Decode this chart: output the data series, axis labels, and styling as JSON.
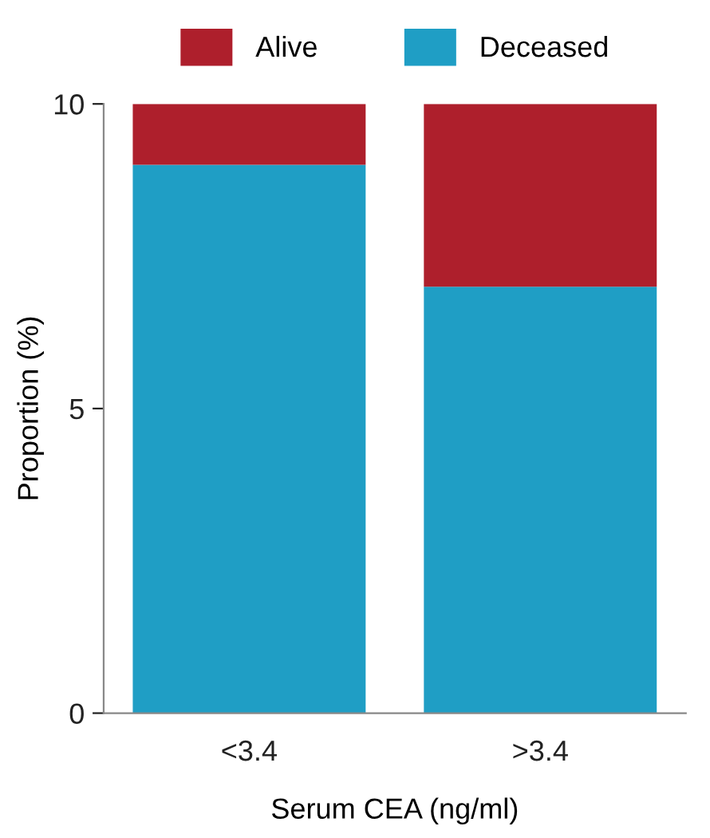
{
  "chart_data": {
    "type": "bar",
    "stacked": true,
    "xlabel": "Serum CEA (ng/ml)",
    "ylabel": "Proportion (%)",
    "categories": [
      "<3.4",
      ">3.4"
    ],
    "series": [
      {
        "name": "Deceased",
        "color": "#1f9ec5",
        "values": [
          9,
          7
        ]
      },
      {
        "name": "Alive",
        "color": "#ae1f2c",
        "values": [
          1,
          3
        ]
      }
    ],
    "ylim": [
      0,
      10
    ],
    "yticks": [
      0,
      5,
      10
    ],
    "grid": false,
    "legend": "top"
  }
}
